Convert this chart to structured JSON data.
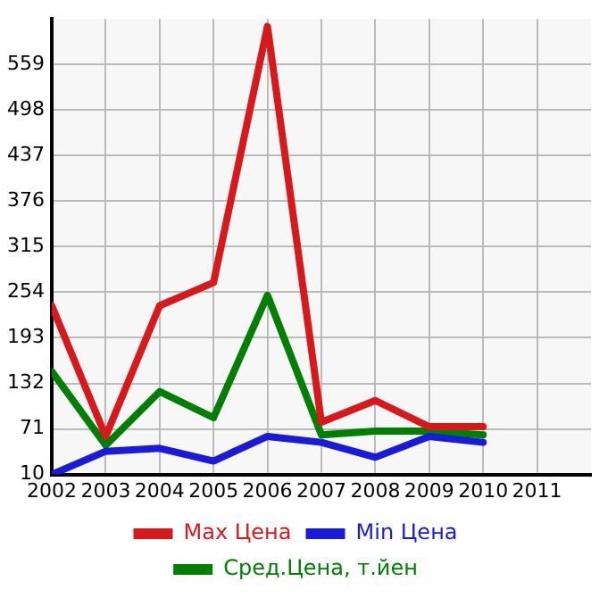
{
  "chart_data": {
    "type": "line",
    "x": [
      2002,
      2003,
      2004,
      2005,
      2006,
      2007,
      2008,
      2009,
      2010
    ],
    "series": [
      {
        "name": "Max Цена",
        "color": "#d7191c",
        "values": [
          236,
          61,
          236,
          267,
          610,
          80,
          109,
          74,
          74
        ]
      },
      {
        "name": "Min Цена",
        "color": "#1a1adb",
        "values": [
          10,
          41,
          45,
          28,
          61,
          53,
          33,
          61,
          53
        ]
      },
      {
        "name": "Сред.Цена, т.йен",
        "color": "#007f00",
        "values": [
          148,
          49,
          121,
          86,
          250,
          63,
          68,
          68,
          63
        ]
      }
    ],
    "xlim": [
      2002,
      2012
    ],
    "xticks": [
      2002,
      2003,
      2004,
      2005,
      2006,
      2007,
      2008,
      2009,
      2010,
      2011
    ],
    "ylim": [
      10,
      620
    ],
    "yticks": [
      10,
      71,
      132,
      193,
      254,
      315,
      376,
      437,
      498,
      559
    ],
    "grid": true,
    "legend": "bottom",
    "marker": "none",
    "line_style": "solid"
  }
}
